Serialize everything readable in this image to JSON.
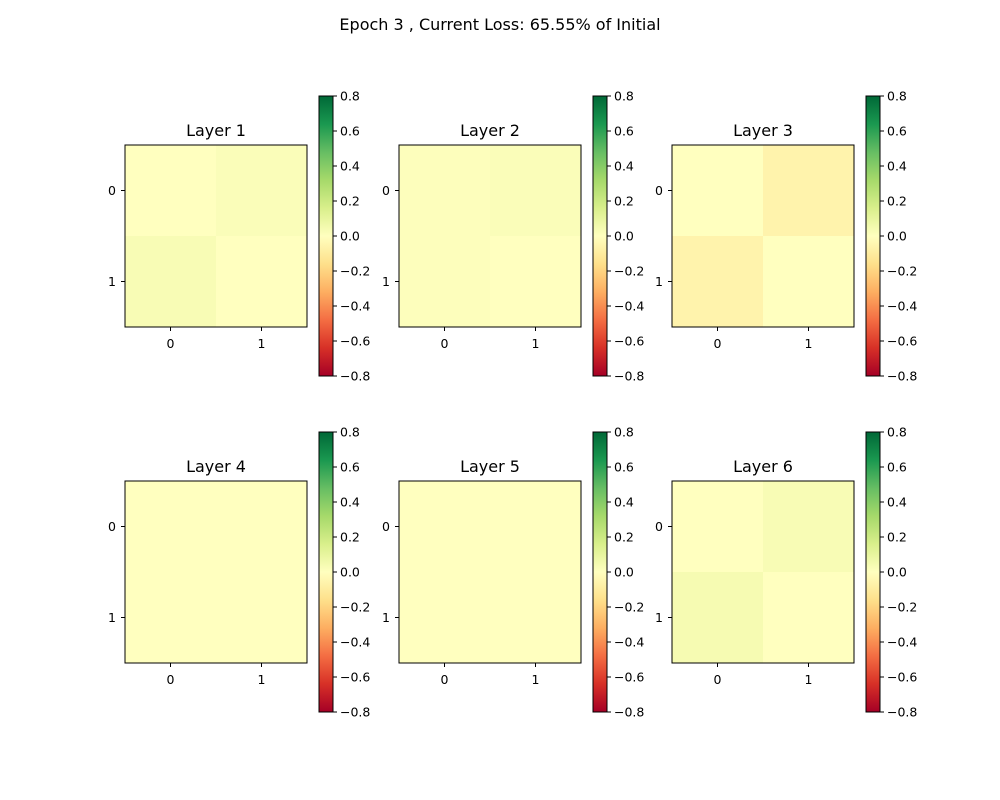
{
  "title": "Epoch 3 , Current Loss: 65.55% of Initial",
  "colormap": {
    "name": "RdYlGn",
    "stops": [
      "#a50026",
      "#d73027",
      "#f46d43",
      "#fdae61",
      "#fee08b",
      "#ffffbf",
      "#d9ef8b",
      "#a6d96a",
      "#66bd63",
      "#1a9850",
      "#006837"
    ]
  },
  "chart_data": [
    {
      "type": "heatmap",
      "title": "Layer 1",
      "x": [
        "0",
        "1"
      ],
      "y": [
        "0",
        "1"
      ],
      "values": [
        [
          0.0,
          0.02
        ],
        [
          0.03,
          0.0
        ]
      ],
      "vmin": -0.8,
      "vmax": 0.8,
      "colorbar_ticks": [
        "0.8",
        "0.6",
        "0.4",
        "0.2",
        "0.0",
        "−0.2",
        "−0.4",
        "−0.6",
        "−0.8"
      ]
    },
    {
      "type": "heatmap",
      "title": "Layer 2",
      "x": [
        "0",
        "1"
      ],
      "y": [
        "0",
        "1"
      ],
      "values": [
        [
          0.01,
          0.02
        ],
        [
          0.01,
          0.0
        ]
      ],
      "vmin": -0.8,
      "vmax": 0.8,
      "colorbar_ticks": [
        "0.8",
        "0.6",
        "0.4",
        "0.2",
        "0.0",
        "−0.2",
        "−0.4",
        "−0.6",
        "−0.8"
      ]
    },
    {
      "type": "heatmap",
      "title": "Layer 3",
      "x": [
        "0",
        "1"
      ],
      "y": [
        "0",
        "1"
      ],
      "values": [
        [
          0.0,
          -0.06
        ],
        [
          -0.06,
          0.0
        ]
      ],
      "vmin": -0.8,
      "vmax": 0.8,
      "colorbar_ticks": [
        "0.8",
        "0.6",
        "0.4",
        "0.2",
        "0.0",
        "−0.2",
        "−0.4",
        "−0.6",
        "−0.8"
      ]
    },
    {
      "type": "heatmap",
      "title": "Layer 4",
      "x": [
        "0",
        "1"
      ],
      "y": [
        "0",
        "1"
      ],
      "values": [
        [
          0.0,
          0.0
        ],
        [
          0.0,
          0.0
        ]
      ],
      "vmin": -0.8,
      "vmax": 0.8,
      "colorbar_ticks": [
        "0.8",
        "0.6",
        "0.4",
        "0.2",
        "0.0",
        "−0.2",
        "−0.4",
        "−0.6",
        "−0.8"
      ]
    },
    {
      "type": "heatmap",
      "title": "Layer 5",
      "x": [
        "0",
        "1"
      ],
      "y": [
        "0",
        "1"
      ],
      "values": [
        [
          0.0,
          0.0
        ],
        [
          0.0,
          0.0
        ]
      ],
      "vmin": -0.8,
      "vmax": 0.8,
      "colorbar_ticks": [
        "0.8",
        "0.6",
        "0.4",
        "0.2",
        "0.0",
        "−0.2",
        "−0.4",
        "−0.6",
        "−0.8"
      ]
    },
    {
      "type": "heatmap",
      "title": "Layer 6",
      "x": [
        "0",
        "1"
      ],
      "y": [
        "0",
        "1"
      ],
      "values": [
        [
          0.0,
          0.03
        ],
        [
          0.04,
          0.0
        ]
      ],
      "vmin": -0.8,
      "vmax": 0.8,
      "colorbar_ticks": [
        "0.8",
        "0.6",
        "0.4",
        "0.2",
        "0.0",
        "−0.2",
        "−0.4",
        "−0.6",
        "−0.8"
      ]
    }
  ]
}
